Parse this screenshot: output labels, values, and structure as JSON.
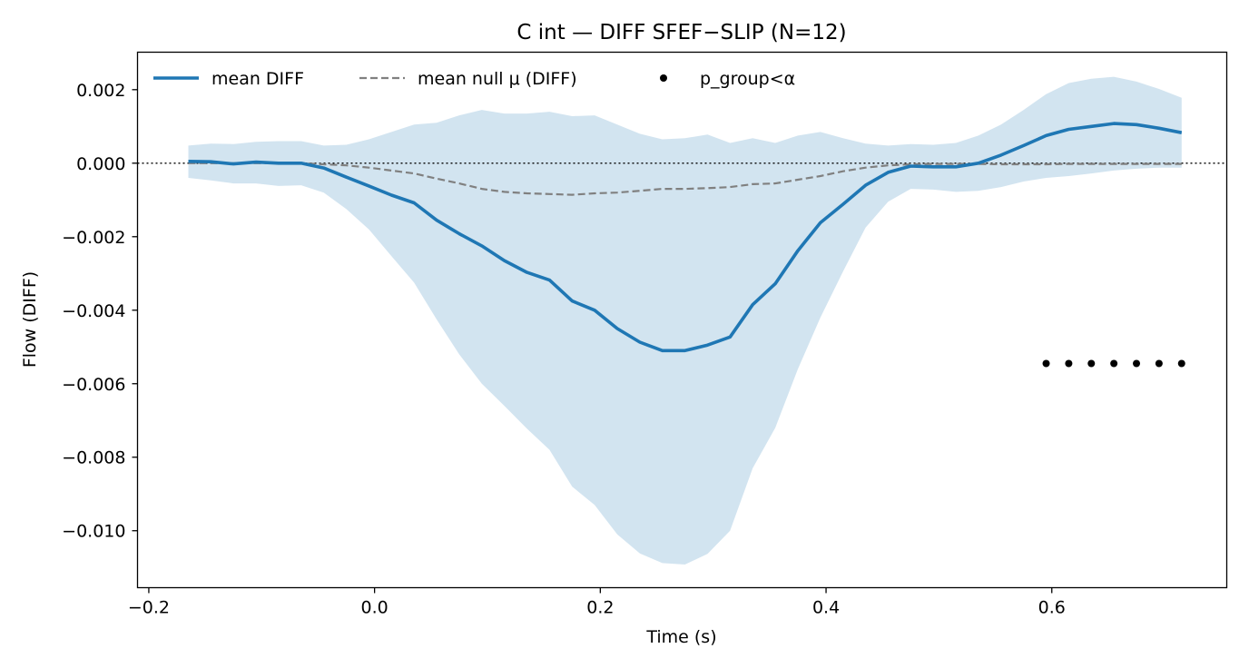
{
  "chart_data": {
    "type": "line",
    "title": "C int — DIFF SFEF−SLIP (N=12)",
    "xlabel": "Time (s)",
    "ylabel": "Flow (DIFF)",
    "xlim": [
      -0.21,
      0.755
    ],
    "ylim": [
      -0.01155,
      0.00302
    ],
    "xticks": [
      -0.2,
      0.0,
      0.2,
      0.4,
      0.6
    ],
    "xtick_labels": [
      "−0.2",
      "0.0",
      "0.2",
      "0.4",
      "0.6"
    ],
    "yticks": [
      0.002,
      0.0,
      -0.002,
      -0.004,
      -0.006,
      -0.008,
      -0.01
    ],
    "ytick_labels": [
      "0.002",
      "0.000",
      "−0.002",
      "−0.004",
      "−0.006",
      "−0.008",
      "−0.010"
    ],
    "grid": false,
    "legend_placement": "top-left",
    "zero_line": true,
    "x": [
      -0.165,
      -0.145,
      -0.125,
      -0.105,
      -0.085,
      -0.065,
      -0.045,
      -0.025,
      -0.005,
      0.015,
      0.035,
      0.055,
      0.075,
      0.095,
      0.115,
      0.135,
      0.155,
      0.175,
      0.195,
      0.215,
      0.235,
      0.255,
      0.275,
      0.295,
      0.315,
      0.335,
      0.355,
      0.375,
      0.395,
      0.415,
      0.435,
      0.455,
      0.475,
      0.495,
      0.515,
      0.535,
      0.555,
      0.575,
      0.595,
      0.615,
      0.635,
      0.655,
      0.675,
      0.695,
      0.715
    ],
    "series": [
      {
        "name": "mean DIFF",
        "color": "#1f77b4",
        "style": "solid",
        "values": [
          5e-05,
          4e-05,
          -2e-05,
          3e-05,
          0.0,
          0.0,
          -0.00013,
          -0.00038,
          -0.00062,
          -0.00087,
          -0.00108,
          -0.00155,
          -0.00192,
          -0.00225,
          -0.00265,
          -0.00297,
          -0.00318,
          -0.00375,
          -0.004,
          -0.0045,
          -0.00487,
          -0.0051,
          -0.0051,
          -0.00495,
          -0.00473,
          -0.00385,
          -0.00328,
          -0.00238,
          -0.00162,
          -0.00112,
          -0.0006,
          -0.00025,
          -8e-05,
          -0.0001,
          -0.0001,
          0.0,
          0.00022,
          0.00048,
          0.00075,
          0.00092,
          0.001,
          0.00108,
          0.00105,
          0.00095,
          0.00083
        ]
      },
      {
        "name": "mean null μ (DIFF)",
        "color": "#808080",
        "style": "dashed",
        "values": [
          0.0,
          0.0,
          0.0,
          0.0,
          0.0,
          0.0,
          -3e-05,
          -6e-05,
          -0.00012,
          -0.0002,
          -0.00028,
          -0.00042,
          -0.00055,
          -0.0007,
          -0.00078,
          -0.00082,
          -0.00084,
          -0.00086,
          -0.00082,
          -0.0008,
          -0.00075,
          -0.0007,
          -0.0007,
          -0.00068,
          -0.00065,
          -0.00057,
          -0.00055,
          -0.00045,
          -0.00035,
          -0.00022,
          -0.00012,
          -6e-05,
          -3e-05,
          -2e-05,
          -2e-05,
          -2e-05,
          -3e-05,
          -3e-05,
          -3e-05,
          -2e-05,
          -2e-05,
          -2e-05,
          -2e-05,
          -2e-05,
          -2e-05
        ]
      }
    ],
    "band": {
      "color": "#1f77b4",
      "opacity": 0.2,
      "upper": [
        0.00048,
        0.00053,
        0.00052,
        0.00058,
        0.0006,
        0.0006,
        0.00048,
        0.0005,
        0.00065,
        0.00085,
        0.00105,
        0.0011,
        0.0013,
        0.00145,
        0.00135,
        0.00135,
        0.0014,
        0.00128,
        0.0013,
        0.00105,
        0.0008,
        0.00065,
        0.00068,
        0.00078,
        0.00055,
        0.00068,
        0.00055,
        0.00075,
        0.00085,
        0.00068,
        0.00053,
        0.00048,
        0.00052,
        0.0005,
        0.00055,
        0.00075,
        0.00105,
        0.00145,
        0.00188,
        0.00218,
        0.0023,
        0.00235,
        0.00222,
        0.00202,
        0.00178
      ],
      "lower": [
        -0.0004,
        -0.00047,
        -0.00055,
        -0.00055,
        -0.00062,
        -0.0006,
        -0.0008,
        -0.00125,
        -0.0018,
        -0.00253,
        -0.00325,
        -0.00425,
        -0.0052,
        -0.006,
        -0.0066,
        -0.00722,
        -0.0078,
        -0.0088,
        -0.0093,
        -0.0101,
        -0.01062,
        -0.01088,
        -0.01092,
        -0.01063,
        -0.01,
        -0.0083,
        -0.0072,
        -0.0056,
        -0.0042,
        -0.00295,
        -0.00175,
        -0.00105,
        -0.0007,
        -0.00072,
        -0.00078,
        -0.00075,
        -0.00065,
        -0.0005,
        -0.0004,
        -0.00035,
        -0.00028,
        -0.0002,
        -0.00015,
        -0.00012,
        -0.00012
      ]
    },
    "significance_markers": {
      "name": "p_group<α",
      "color": "#000000",
      "x": [
        0.595,
        0.615,
        0.635,
        0.655,
        0.675,
        0.695,
        0.715
      ],
      "y": -0.00545
    }
  }
}
